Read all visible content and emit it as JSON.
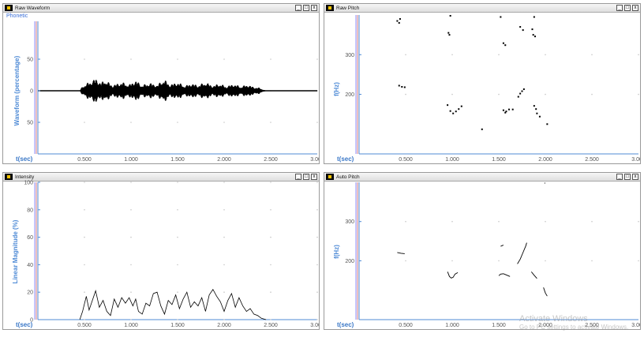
{
  "colors": {
    "axis": "#4f8bd6",
    "trace": "#000000",
    "grid_dot": "#c8c8c8"
  },
  "window_controls": {
    "minimize": "_",
    "restore": "□",
    "close": "x"
  },
  "windows": [
    {
      "title": "Raw Waveform",
      "extra_label": "Phonetic",
      "y_label": "Waveform (percentage)",
      "x_unit": "t(sec)",
      "x_ticks": [
        "0.500",
        "1.000",
        "1.500",
        "2.000",
        "2.500",
        "3.000"
      ],
      "y_ticks": [
        "50",
        "0",
        "50"
      ],
      "icons": [
        "app-icon",
        "minimize-icon",
        "restore-icon",
        "close-icon"
      ]
    },
    {
      "title": "Raw Pitch",
      "y_label": "f(Hz)",
      "x_unit": "t(sec)",
      "x_ticks": [
        "0.500",
        "1.000",
        "1.500",
        "2.000",
        "2.500",
        "3.000"
      ],
      "y_ticks": [
        "300",
        "200"
      ]
    },
    {
      "title": "Intensity",
      "y_label": "Linear Magnitude (%)",
      "x_unit": "t(sec)",
      "x_ticks": [
        "0.500",
        "1.000",
        "1.500",
        "2.000",
        "2.500",
        "3.000"
      ],
      "y_ticks": [
        "100",
        "80",
        "60",
        "40",
        "20",
        "0"
      ]
    },
    {
      "title": "Auto Pitch",
      "y_label": "f(Hz)",
      "x_unit": "t(sec)",
      "x_ticks": [
        "0.500",
        "1.000",
        "1.500",
        "2.000",
        "2.500",
        "3.000"
      ],
      "y_ticks": [
        "300",
        "200"
      ]
    }
  ],
  "chart_data": [
    {
      "type": "line",
      "x_range": [
        0,
        3.0
      ],
      "y_range": [
        -80,
        80
      ],
      "envelope": {
        "t": [
          0.0,
          0.45,
          0.48,
          0.55,
          0.62,
          0.68,
          0.72,
          0.8,
          0.9,
          0.98,
          1.05,
          1.12,
          1.2,
          1.28,
          1.35,
          1.42,
          1.5,
          1.58,
          1.65,
          1.72,
          1.8,
          1.88,
          1.95,
          2.02,
          2.1,
          2.18,
          2.25,
          2.32,
          2.38,
          2.45,
          3.0
        ],
        "amp": [
          0,
          0,
          8,
          14,
          20,
          13,
          18,
          9,
          14,
          10,
          17,
          9,
          13,
          9,
          19,
          10,
          14,
          8,
          12,
          9,
          14,
          8,
          12,
          7,
          11,
          7,
          10,
          6,
          5,
          0,
          0
        ]
      }
    },
    {
      "type": "scatter",
      "x_range": [
        0,
        3.0
      ],
      "y_range": [
        50,
        400
      ],
      "points": [
        [
          0.41,
          385
        ],
        [
          0.44,
          390
        ],
        [
          0.43,
          380
        ],
        [
          0.43,
          222
        ],
        [
          0.46,
          219
        ],
        [
          0.49,
          218
        ],
        [
          0.98,
          398
        ],
        [
          0.96,
          355
        ],
        [
          0.97,
          350
        ],
        [
          0.95,
          173
        ],
        [
          0.98,
          158
        ],
        [
          1.01,
          152
        ],
        [
          1.04,
          157
        ],
        [
          1.07,
          163
        ],
        [
          1.1,
          170
        ],
        [
          1.32,
          112
        ],
        [
          1.52,
          395
        ],
        [
          1.55,
          329
        ],
        [
          1.57,
          324
        ],
        [
          1.55,
          160
        ],
        [
          1.57,
          154
        ],
        [
          1.58,
          157
        ],
        [
          1.61,
          162
        ],
        [
          1.65,
          162
        ],
        [
          1.73,
          370
        ],
        [
          1.76,
          362
        ],
        [
          1.71,
          194
        ],
        [
          1.73,
          202
        ],
        [
          1.75,
          208
        ],
        [
          1.77,
          213
        ],
        [
          1.88,
          395
        ],
        [
          1.86,
          364
        ],
        [
          1.87,
          350
        ],
        [
          1.89,
          346
        ],
        [
          1.88,
          171
        ],
        [
          1.9,
          163
        ],
        [
          1.91,
          152
        ],
        [
          1.94,
          144
        ],
        [
          2.02,
          125
        ]
      ]
    },
    {
      "type": "line",
      "x_range": [
        0,
        3.0
      ],
      "y_range": [
        0,
        100
      ],
      "x": [
        0.45,
        0.48,
        0.52,
        0.55,
        0.58,
        0.62,
        0.66,
        0.7,
        0.74,
        0.78,
        0.82,
        0.86,
        0.9,
        0.94,
        0.98,
        1.02,
        1.05,
        1.08,
        1.12,
        1.16,
        1.2,
        1.24,
        1.28,
        1.32,
        1.36,
        1.4,
        1.44,
        1.48,
        1.52,
        1.56,
        1.6,
        1.64,
        1.68,
        1.72,
        1.76,
        1.8,
        1.84,
        1.88,
        1.92,
        1.96,
        2.0,
        2.04,
        2.08,
        2.12,
        2.16,
        2.2,
        2.24,
        2.28,
        2.32,
        2.36,
        2.4,
        2.45
      ],
      "y": [
        0,
        6,
        17,
        7,
        13,
        21,
        9,
        14,
        6,
        3,
        15,
        9,
        16,
        12,
        16,
        10,
        15,
        6,
        4,
        12,
        10,
        19,
        20,
        10,
        4,
        14,
        11,
        18,
        8,
        15,
        20,
        9,
        13,
        10,
        16,
        6,
        18,
        22,
        17,
        13,
        6,
        14,
        19,
        9,
        16,
        10,
        6,
        8,
        4,
        3,
        1,
        0
      ]
    },
    {
      "type": "line",
      "x_range": [
        0,
        3.0
      ],
      "y_range": [
        50,
        400
      ],
      "segments": [
        {
          "x": [
            0.41,
            0.45,
            0.49
          ],
          "y": [
            221,
            219,
            218
          ]
        },
        {
          "x": [
            0.95,
            0.97,
            0.99,
            1.01,
            1.03,
            1.06
          ],
          "y": [
            172,
            160,
            156,
            158,
            166,
            170
          ]
        },
        {
          "x": [
            1.52,
            1.55
          ],
          "y": [
            237,
            240
          ]
        },
        {
          "x": [
            1.5,
            1.52,
            1.55,
            1.58,
            1.62
          ],
          "y": [
            162,
            166,
            167,
            164,
            160
          ]
        },
        {
          "x": [
            1.7,
            1.73,
            1.76,
            1.79,
            1.8
          ],
          "y": [
            192,
            204,
            221,
            238,
            246
          ]
        },
        {
          "x": [
            1.85,
            1.88,
            1.91
          ],
          "y": [
            172,
            163,
            155
          ]
        },
        {
          "x": [
            1.98,
            2.0,
            2.02
          ],
          "y": [
            132,
            118,
            110
          ]
        },
        {
          "x": [
            1.99,
            2.0
          ],
          "y": [
            398,
            398
          ]
        }
      ]
    }
  ],
  "watermark": {
    "line1": "Activate Windows",
    "line2": "Go to PC settings to activate Windows."
  }
}
